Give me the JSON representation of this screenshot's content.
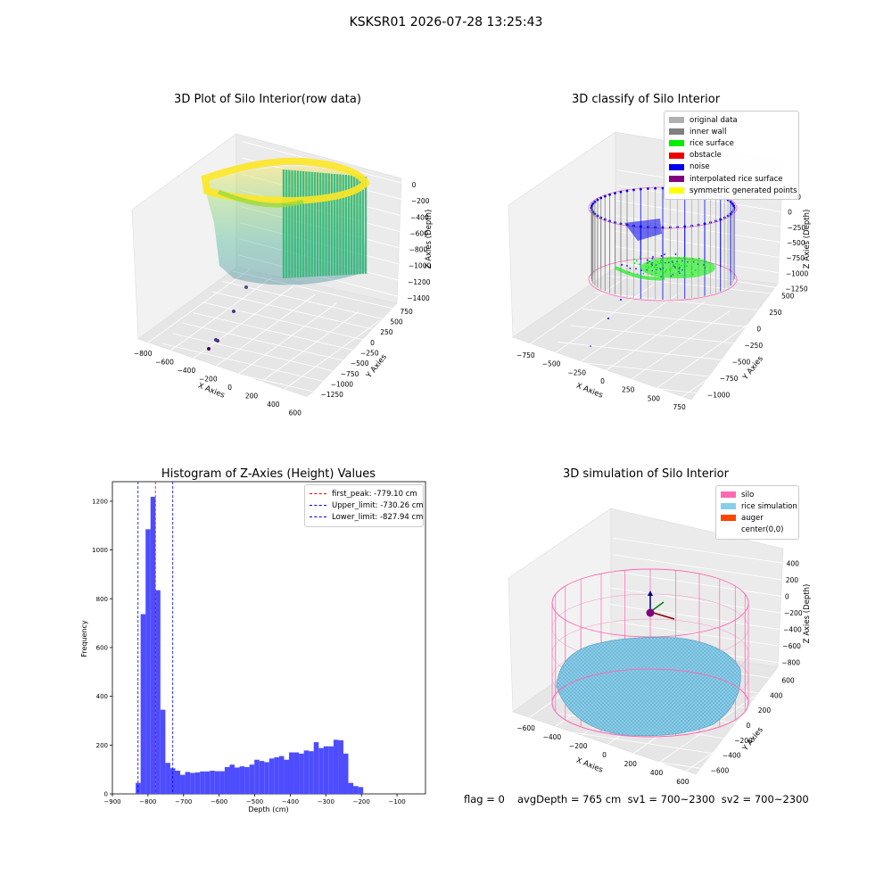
{
  "suptitle": "KSKSR01 2026-07-28 13:25:43",
  "chart_data": [
    {
      "type": "scatter",
      "title": "3D Plot of Silo Interior(row data)",
      "xlabel": "X Axies",
      "ylabel": "Y Axies",
      "zlabel": "Z Axies (Depth)",
      "x_ticks": [
        "−800",
        "−600",
        "−400",
        "−200",
        "0",
        "200",
        "400",
        "600"
      ],
      "y_ticks": [
        "−1250",
        "−1000",
        "−750",
        "−500",
        "−250",
        "0",
        "250",
        "500",
        "750"
      ],
      "z_ticks": [
        "0",
        "−200",
        "−400",
        "−600",
        "−800",
        "−1000",
        "−1200",
        "−1400"
      ],
      "colormap": "viridis"
    },
    {
      "type": "scatter",
      "title": "3D classify of Silo Interior",
      "xlabel": "X Axies",
      "ylabel": "Y Axies",
      "zlabel": "Z Axies (Depth)",
      "x_ticks": [
        "−750",
        "−500",
        "−250",
        "0",
        "250",
        "500",
        "750"
      ],
      "y_ticks": [
        "−1000",
        "−750",
        "−500",
        "−250",
        "0",
        "250",
        "500"
      ],
      "z_ticks": [
        "250",
        "0",
        "−250",
        "−500",
        "−750",
        "−1000",
        "−1250"
      ],
      "legend": [
        {
          "label": "original data",
          "color": "#b0b0b0"
        },
        {
          "label": "inner wall",
          "color": "#808080"
        },
        {
          "label": "rice surface",
          "color": "#00ee00"
        },
        {
          "label": "obstacle",
          "color": "#ee0000"
        },
        {
          "label": "noise",
          "color": "#0000ee"
        },
        {
          "label": "interpolated rice surface",
          "color": "#800080"
        },
        {
          "label": "symmetric generated points",
          "color": "#ffff00"
        }
      ]
    },
    {
      "type": "bar",
      "title": "Histogram of Z-Axies (Height) Values",
      "xlabel": "Depth (cm)",
      "ylabel": "Frequency",
      "xlim": [
        -900,
        -20
      ],
      "ylim": [
        0,
        1280
      ],
      "x_ticks": [
        -900,
        -800,
        -700,
        -600,
        -500,
        -400,
        -300,
        -200,
        -100
      ],
      "y_ticks": [
        0,
        200,
        400,
        600,
        800,
        1000,
        1200
      ],
      "bar_color": "#4d4dff",
      "bin_width": 13.9,
      "bin_start": -834.5,
      "values": [
        45,
        737,
        1085,
        1218,
        835,
        345,
        127,
        105,
        95,
        78,
        90,
        86,
        88,
        92,
        92,
        95,
        93,
        93,
        110,
        120,
        108,
        113,
        110,
        120,
        140,
        135,
        130,
        145,
        150,
        155,
        140,
        170,
        170,
        165,
        178,
        175,
        212,
        188,
        195,
        195,
        222,
        220,
        165,
        45,
        32,
        28
      ],
      "vlines": [
        {
          "label": "first_peak: -779.10 cm",
          "x": -779.1,
          "color": "#ee0000"
        },
        {
          "label": "Upper_limit: -730.26 cm",
          "x": -730.26,
          "color": "#0000ee"
        },
        {
          "label": "Lower_limit: -827.94 cm",
          "x": -827.94,
          "color": "#0000ee"
        }
      ]
    },
    {
      "type": "scatter",
      "title": "3D simulation of Silo Interior",
      "xlabel": "X Axies",
      "ylabel": "Y Axies",
      "zlabel": "Z Axies (Depth)",
      "x_ticks": [
        "−600",
        "−400",
        "−200",
        "0",
        "200",
        "400",
        "600"
      ],
      "y_ticks": [
        "−600",
        "−400",
        "−200",
        "0",
        "200",
        "400",
        "600"
      ],
      "z_ticks": [
        "400",
        "200",
        "0",
        "−200",
        "−400",
        "−600",
        "−800"
      ],
      "legend": [
        {
          "label": "silo",
          "color": "#ff69b4"
        },
        {
          "label": "rice simulation",
          "color": "#87ceeb"
        },
        {
          "label": "auger",
          "color": "#ff4500"
        },
        {
          "label": "center(0,0)",
          "color": "#ffffff"
        }
      ]
    }
  ],
  "footer": {
    "flag": "flag = 0",
    "stats": "avgDepth = 765 cm  sv1 = 700~2300  sv2 = 700~2300"
  }
}
